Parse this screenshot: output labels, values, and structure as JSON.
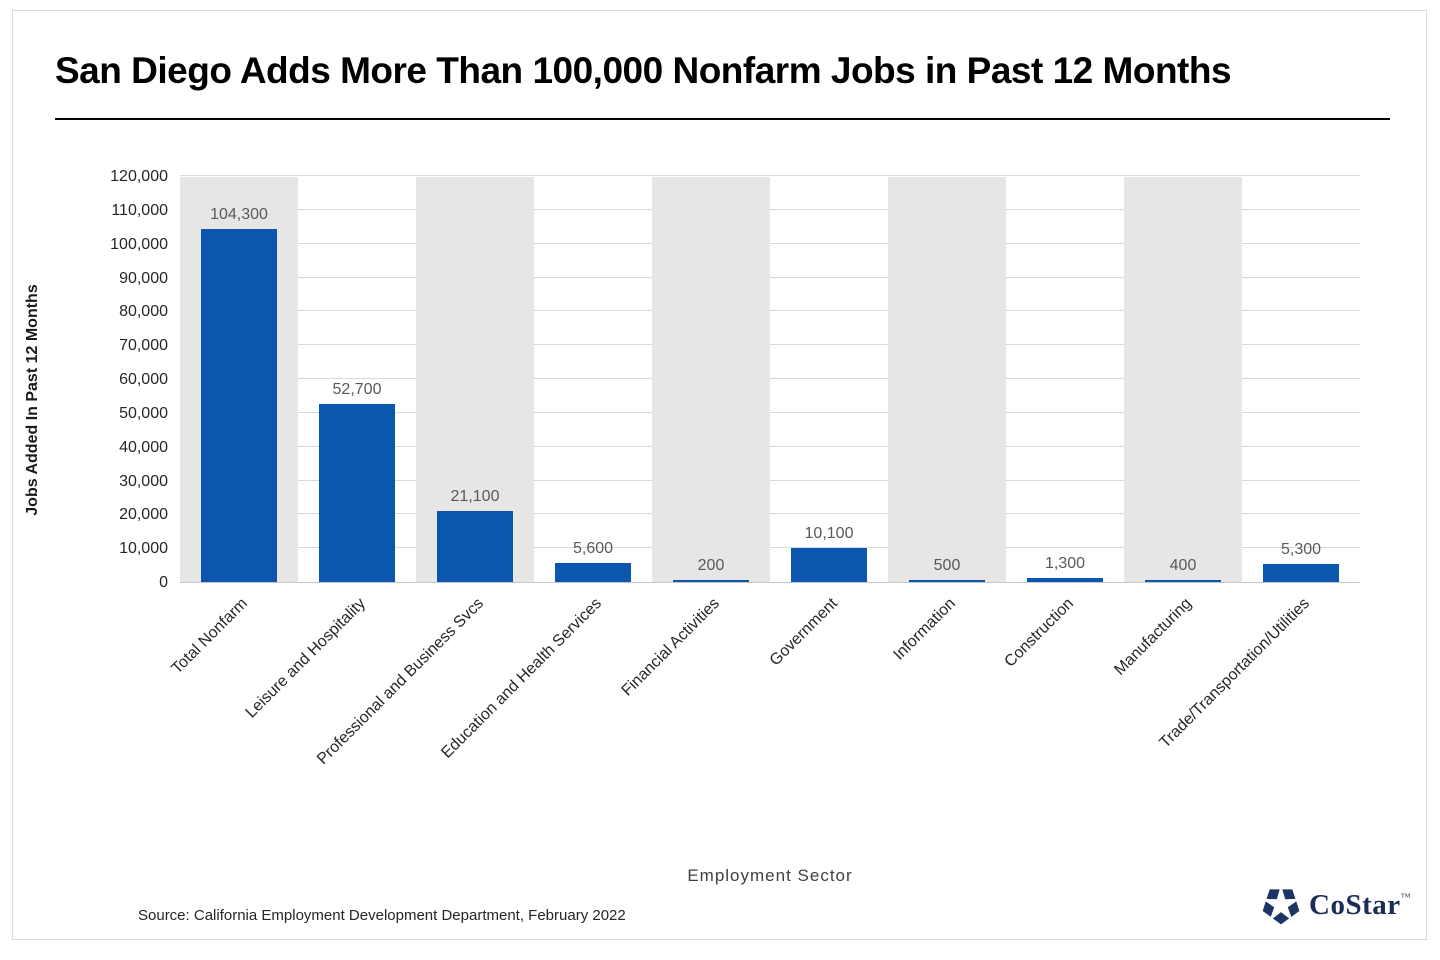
{
  "page": {
    "title": "San Diego Adds More Than 100,000 Nonfarm Jobs in Past 12 Months"
  },
  "chart_data": {
    "type": "bar",
    "title": "San Diego Adds More Than 100,000 Nonfarm Jobs in Past 12 Months",
    "xlabel": "Employment Sector",
    "ylabel": "Jobs Added In Past 12 Months",
    "categories": [
      "Total Nonfarm",
      "Leisure and Hospitality",
      "Professional and Business Svcs",
      "Education and Health Services",
      "Financial Activities",
      "Government",
      "Information",
      "Construction",
      "Manufacturing",
      "Trade/Transportation/Utilities"
    ],
    "values": [
      104300,
      52700,
      21100,
      5600,
      200,
      10100,
      500,
      1300,
      400,
      5300
    ],
    "value_labels": [
      "104,300",
      "52,700",
      "21,100",
      "5,600",
      "200",
      "10,100",
      "500",
      "1,300",
      "400",
      "5,300"
    ],
    "ylim": [
      0,
      120000
    ],
    "ytick_step": 10000,
    "ytick_labels": [
      "0",
      "10,000",
      "20,000",
      "30,000",
      "40,000",
      "50,000",
      "60,000",
      "70,000",
      "80,000",
      "90,000",
      "100,000",
      "110,000",
      "120,000"
    ],
    "grid": true,
    "legend": false,
    "bar_color": "#0b57b0",
    "band_color": "#e7e6e4",
    "gridline_color": "#d9d9d9",
    "banded_slots": [
      0,
      2,
      4,
      6,
      8
    ]
  },
  "source": {
    "text": "Source: California Employment Development Department, February 2022"
  },
  "logo": {
    "text": "CoStar",
    "tm": "TM",
    "icon_color": "#1d3565",
    "text_color": "#1b2c55"
  }
}
